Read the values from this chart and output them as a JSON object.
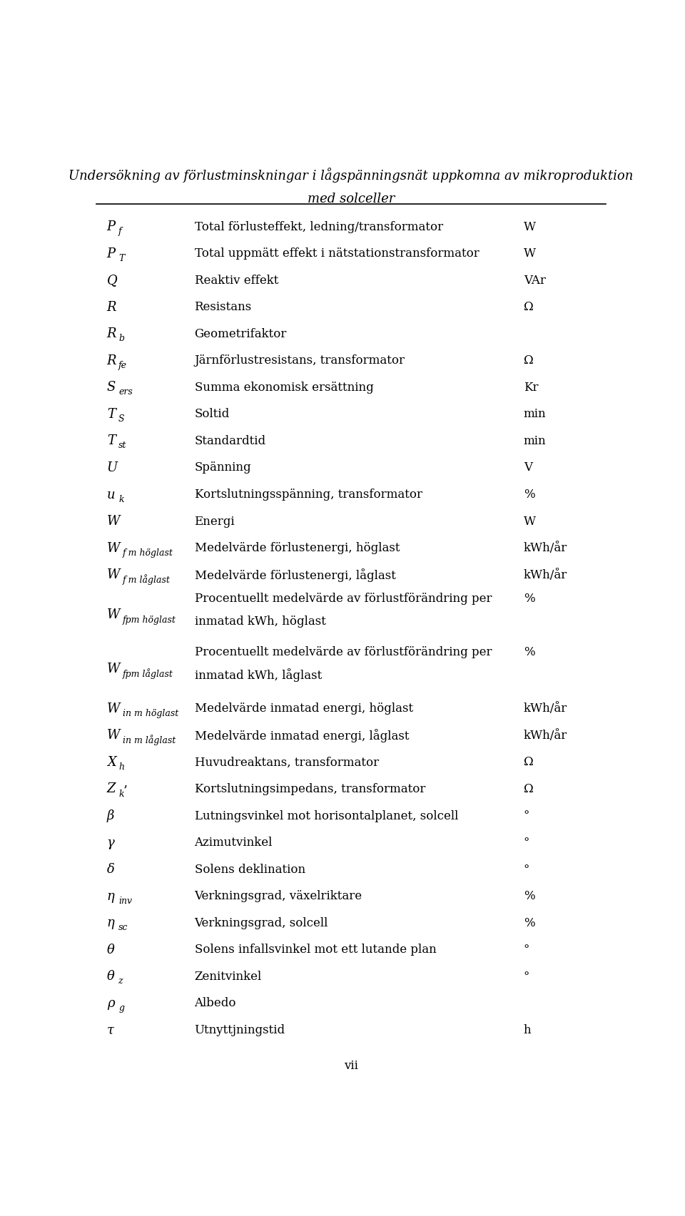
{
  "title_line1": "Undersökning av förlustminskningar i lågspänningsnät uppkomna av mikroproduktion",
  "title_line2": "med solceller",
  "page_label": "vii",
  "background_color": "#ffffff",
  "rows": [
    {
      "symbol_parts": [
        {
          "text": "P",
          "style": "italic"
        },
        {
          "text": "f",
          "style": "italic_sub"
        }
      ],
      "description": "Total förlusteffekt, ledning/transformator",
      "unit": "W"
    },
    {
      "symbol_parts": [
        {
          "text": "P",
          "style": "italic"
        },
        {
          "text": "T",
          "style": "italic_sub"
        }
      ],
      "description": "Total uppmätt effekt i nätstationstransformator",
      "unit": "W"
    },
    {
      "symbol_parts": [
        {
          "text": "Q",
          "style": "italic"
        }
      ],
      "description": "Reaktiv effekt",
      "unit": "VAr"
    },
    {
      "symbol_parts": [
        {
          "text": "R",
          "style": "italic"
        }
      ],
      "description": "Resistans",
      "unit": "Ω"
    },
    {
      "symbol_parts": [
        {
          "text": "R",
          "style": "italic"
        },
        {
          "text": "b",
          "style": "italic_sub"
        }
      ],
      "description": "Geometrifaktor",
      "unit": ""
    },
    {
      "symbol_parts": [
        {
          "text": "R",
          "style": "italic"
        },
        {
          "text": "fe",
          "style": "italic_sub"
        }
      ],
      "description": "Järnförlustresistans, transformator",
      "unit": "Ω"
    },
    {
      "symbol_parts": [
        {
          "text": "S",
          "style": "italic"
        },
        {
          "text": "ers",
          "style": "italic_sub"
        }
      ],
      "description": "Summa ekonomisk ersättning",
      "unit": "Kr"
    },
    {
      "symbol_parts": [
        {
          "text": "T",
          "style": "italic"
        },
        {
          "text": "S",
          "style": "italic_sub"
        }
      ],
      "description": "Soltid",
      "unit": "min"
    },
    {
      "symbol_parts": [
        {
          "text": "T",
          "style": "italic"
        },
        {
          "text": "st",
          "style": "italic_sub"
        }
      ],
      "description": "Standardtid",
      "unit": "min"
    },
    {
      "symbol_parts": [
        {
          "text": "U",
          "style": "italic"
        }
      ],
      "description": "Spänning",
      "unit": "V"
    },
    {
      "symbol_parts": [
        {
          "text": "u",
          "style": "italic"
        },
        {
          "text": "k",
          "style": "italic_sub"
        }
      ],
      "description": "Kortslutningsspänning, transformator",
      "unit": "%"
    },
    {
      "symbol_parts": [
        {
          "text": "W",
          "style": "italic"
        }
      ],
      "description": "Energi",
      "unit": "W"
    },
    {
      "symbol_parts": [
        {
          "text": "W",
          "style": "italic"
        },
        {
          "text": "f m höglast",
          "style": "italic_sub"
        }
      ],
      "description": "Medelvärde förlustenergi, höglast",
      "unit": "kWh/år"
    },
    {
      "symbol_parts": [
        {
          "text": "W",
          "style": "italic"
        },
        {
          "text": "f m låglast",
          "style": "italic_sub"
        }
      ],
      "description": "Medelvärde förlustenergi, låglast",
      "unit": "kWh/år"
    },
    {
      "symbol_parts": [
        {
          "text": "W",
          "style": "italic"
        },
        {
          "text": "fpm höglast",
          "style": "italic_sub"
        }
      ],
      "description": "Procentuellt medelvärde av förlustförändring per\ninmatad kWh, höglast",
      "unit": "%"
    },
    {
      "symbol_parts": [
        {
          "text": "W",
          "style": "italic"
        },
        {
          "text": "fpm låglast",
          "style": "italic_sub"
        }
      ],
      "description": "Procentuellt medelvärde av förlustförändring per\ninmatad kWh, låglast",
      "unit": "%"
    },
    {
      "symbol_parts": [
        {
          "text": "W",
          "style": "italic"
        },
        {
          "text": "in m höglast",
          "style": "italic_sub"
        }
      ],
      "description": "Medelvärde inmatad energi, höglast",
      "unit": "kWh/år"
    },
    {
      "symbol_parts": [
        {
          "text": "W",
          "style": "italic"
        },
        {
          "text": "in m låglast",
          "style": "italic_sub"
        }
      ],
      "description": "Medelvärde inmatad energi, låglast",
      "unit": "kWh/år"
    },
    {
      "symbol_parts": [
        {
          "text": "X",
          "style": "italic"
        },
        {
          "text": "h",
          "style": "italic_sub"
        }
      ],
      "description": "Huvudreaktans, transformator",
      "unit": "Ω"
    },
    {
      "symbol_parts": [
        {
          "text": "Z",
          "style": "italic"
        },
        {
          "text": "k",
          "style": "italic_sub"
        },
        {
          "text": "’",
          "style": "normal"
        }
      ],
      "description": "Kortslutningsimpedans, transformator",
      "unit": "Ω"
    },
    {
      "symbol_parts": [
        {
          "text": "β",
          "style": "italic"
        }
      ],
      "description": "Lutningsvinkel mot horisontalplanet, solcell",
      "unit": "°"
    },
    {
      "symbol_parts": [
        {
          "text": "γ",
          "style": "italic"
        }
      ],
      "description": "Azimutvinkel",
      "unit": "°"
    },
    {
      "symbol_parts": [
        {
          "text": "δ",
          "style": "italic"
        }
      ],
      "description": "Solens deklination",
      "unit": "°"
    },
    {
      "symbol_parts": [
        {
          "text": "η",
          "style": "italic"
        },
        {
          "text": "inv",
          "style": "italic_sub"
        }
      ],
      "description": "Verkningsgrad, växelriktare",
      "unit": "%"
    },
    {
      "symbol_parts": [
        {
          "text": "η",
          "style": "italic"
        },
        {
          "text": "sc",
          "style": "italic_sub"
        }
      ],
      "description": "Verkningsgrad, solcell",
      "unit": "%"
    },
    {
      "symbol_parts": [
        {
          "text": "θ",
          "style": "italic"
        }
      ],
      "description": "Solens infallsvinkel mot ett lutande plan",
      "unit": "°"
    },
    {
      "symbol_parts": [
        {
          "text": "θ",
          "style": "italic"
        },
        {
          "text": "z",
          "style": "italic_sub"
        }
      ],
      "description": "Zenitvinkel",
      "unit": "°"
    },
    {
      "symbol_parts": [
        {
          "text": "ρ",
          "style": "italic"
        },
        {
          "text": "g",
          "style": "italic_sub"
        }
      ],
      "description": "Albedo",
      "unit": ""
    },
    {
      "symbol_parts": [
        {
          "text": "τ",
          "style": "italic"
        }
      ],
      "description": "Utnyttjningstid",
      "unit": "h"
    }
  ]
}
